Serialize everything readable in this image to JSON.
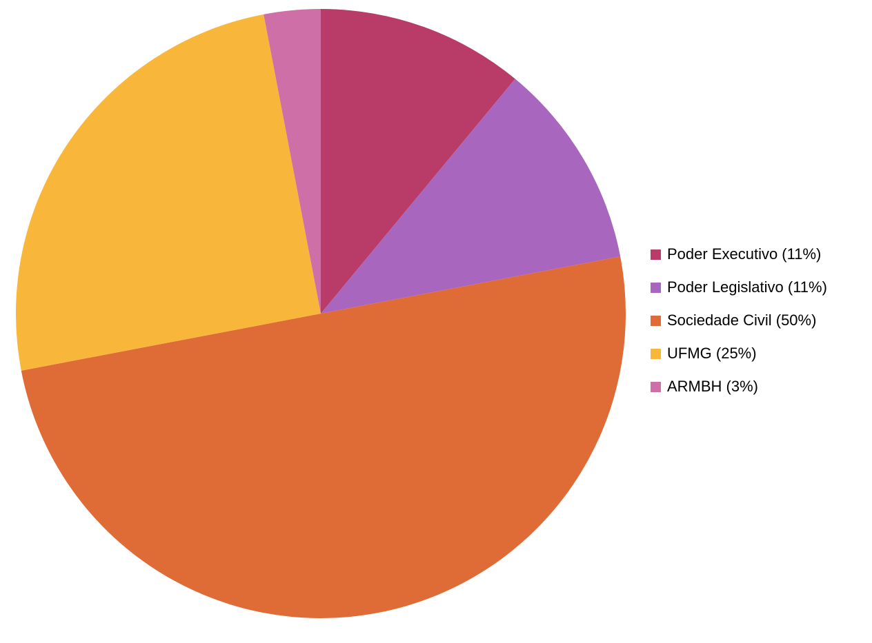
{
  "chart_data": {
    "type": "pie",
    "categories": [
      "Poder Executivo (11%)",
      "Poder Legislativo (11%)",
      "Sociedade Civil (50%)",
      "UFMG (25%)",
      "ARMBH (3%)"
    ],
    "values": [
      11,
      11,
      50,
      25,
      3
    ],
    "colors": [
      "#b93c68",
      "#a966be",
      "#df6b36",
      "#f8b73b",
      "#cf6fa8"
    ],
    "legend": "right"
  }
}
